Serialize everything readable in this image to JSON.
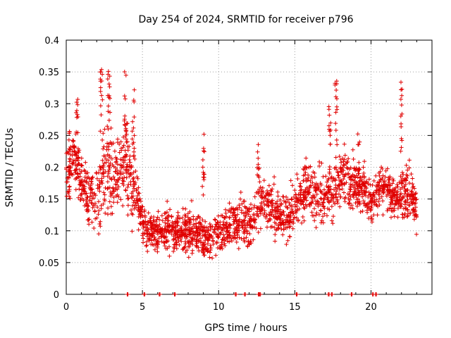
{
  "chart_data": {
    "type": "scatter",
    "title": "Day 254 of 2024, SRMTID for receiver p796",
    "xlabel": "GPS time / hours",
    "ylabel": "SRMTID / TECUs",
    "xlim": [
      0,
      24
    ],
    "ylim": [
      0,
      0.4
    ],
    "x_ticks": [
      0,
      5,
      10,
      15,
      20
    ],
    "x_tick_labels": [
      "0",
      "5",
      "10",
      "15",
      "20"
    ],
    "y_ticks": [
      0,
      0.05,
      0.1,
      0.15,
      0.2,
      0.25,
      0.3,
      0.35,
      0.4
    ],
    "y_tick_labels": [
      "0",
      "0.05",
      "0.1",
      "0.15",
      "0.2",
      "0.25",
      "0.3",
      "0.35",
      "0.4"
    ],
    "grid": true,
    "marker": "plus",
    "color": "#e00000",
    "envelope_x": [
      0.0,
      0.5,
      1.0,
      1.5,
      2.0,
      2.5,
      3.0,
      3.5,
      4.0,
      4.5,
      5.0,
      5.5,
      6.0,
      6.5,
      7.0,
      7.5,
      8.0,
      8.5,
      9.0,
      9.5,
      10.0,
      10.5,
      11.0,
      11.5,
      12.0,
      12.5,
      13.0,
      13.5,
      14.0,
      14.5,
      15.0,
      15.5,
      16.0,
      16.5,
      17.0,
      17.5,
      18.0,
      18.5,
      19.0,
      19.5,
      20.0,
      20.5,
      21.0,
      21.5,
      22.0,
      22.5,
      23.0
    ],
    "envelope_center": [
      0.2,
      0.21,
      0.18,
      0.15,
      0.15,
      0.2,
      0.18,
      0.19,
      0.2,
      0.16,
      0.11,
      0.1,
      0.1,
      0.1,
      0.1,
      0.1,
      0.1,
      0.1,
      0.09,
      0.09,
      0.1,
      0.1,
      0.11,
      0.11,
      0.11,
      0.13,
      0.15,
      0.14,
      0.12,
      0.12,
      0.14,
      0.16,
      0.16,
      0.15,
      0.15,
      0.16,
      0.19,
      0.18,
      0.17,
      0.17,
      0.14,
      0.17,
      0.17,
      0.15,
      0.16,
      0.16,
      0.14
    ],
    "envelope_spread": [
      0.05,
      0.05,
      0.05,
      0.05,
      0.06,
      0.08,
      0.08,
      0.06,
      0.07,
      0.06,
      0.03,
      0.03,
      0.03,
      0.035,
      0.035,
      0.035,
      0.035,
      0.035,
      0.035,
      0.035,
      0.035,
      0.035,
      0.035,
      0.04,
      0.04,
      0.04,
      0.04,
      0.04,
      0.04,
      0.04,
      0.04,
      0.04,
      0.045,
      0.045,
      0.045,
      0.045,
      0.05,
      0.05,
      0.04,
      0.04,
      0.03,
      0.04,
      0.04,
      0.035,
      0.05,
      0.05,
      0.04
    ],
    "point_count": 2200,
    "x_range_points": [
      0,
      23
    ],
    "peaks": [
      {
        "x": 2.3,
        "y": 0.36
      },
      {
        "x": 2.8,
        "y": 0.355
      },
      {
        "x": 3.9,
        "y": 0.36
      },
      {
        "x": 4.4,
        "y": 0.335
      },
      {
        "x": 0.7,
        "y": 0.31
      },
      {
        "x": 9.0,
        "y": 0.26
      },
      {
        "x": 12.6,
        "y": 0.25
      },
      {
        "x": 17.7,
        "y": 0.345
      },
      {
        "x": 17.3,
        "y": 0.31
      },
      {
        "x": 22.0,
        "y": 0.34
      },
      {
        "x": 19.2,
        "y": 0.26
      },
      {
        "x": 0.2,
        "y": 0.265
      }
    ],
    "baseline_points_x": [
      4.0,
      5.1,
      6.1,
      7.1,
      11.1,
      11.7,
      12.6,
      12.7,
      15.1,
      17.2,
      17.4,
      18.7,
      20.1,
      20.3
    ]
  }
}
